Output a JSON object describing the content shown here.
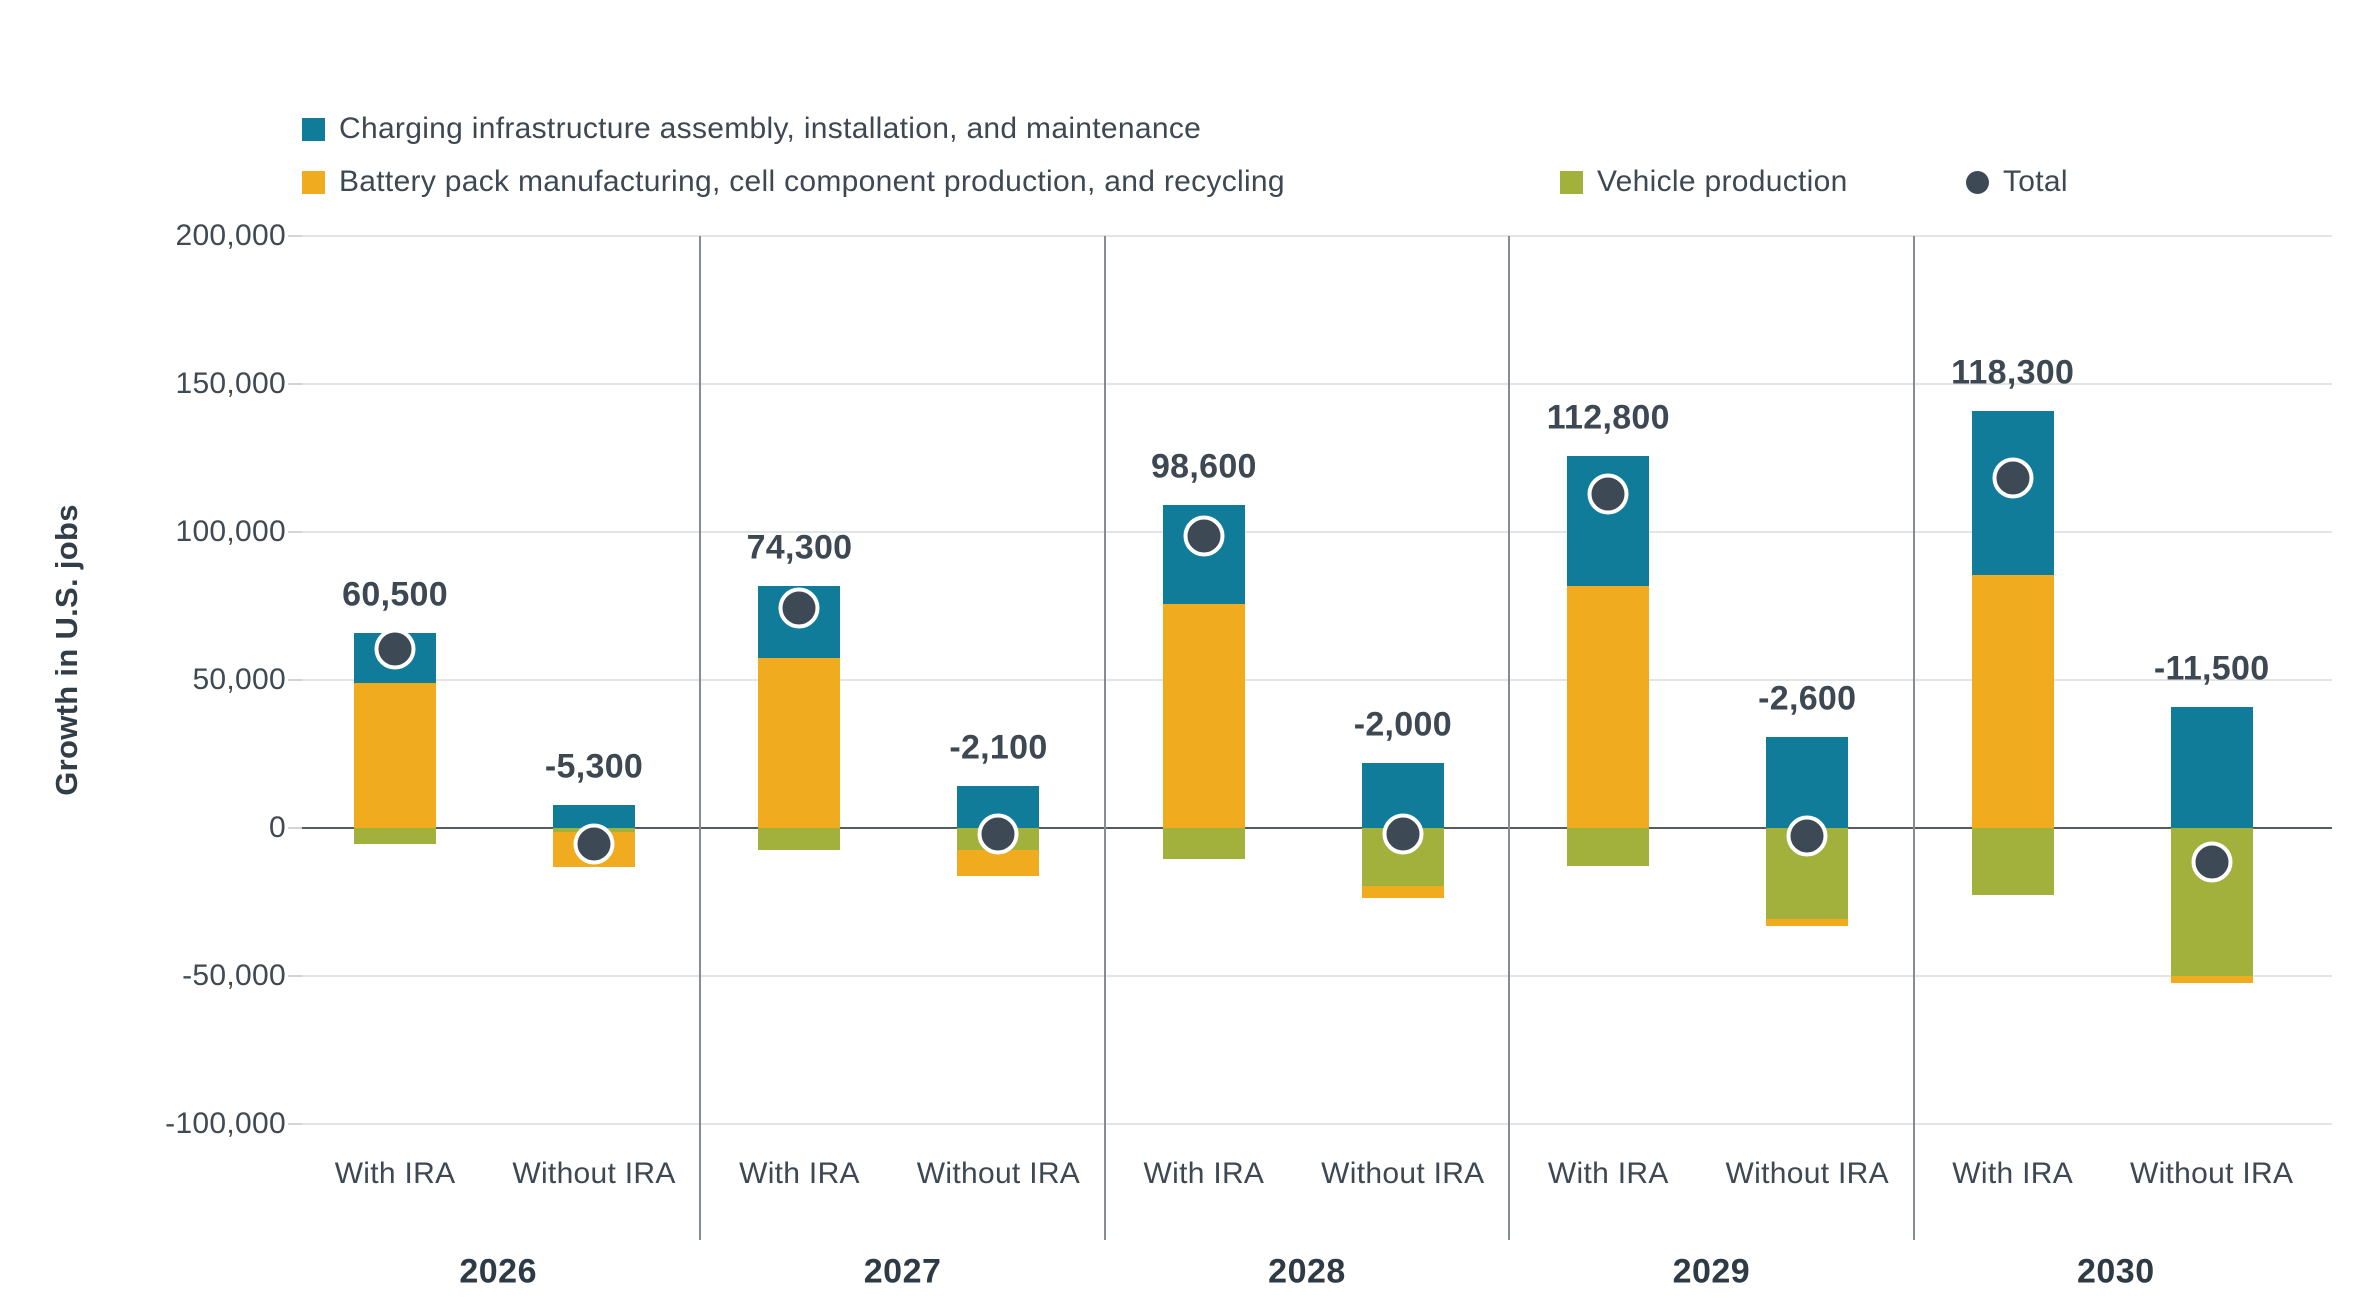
{
  "chart_data": {
    "type": "bar",
    "stacked": true,
    "ylabel": "Growth in U.S. jobs",
    "ylim": [
      -100000,
      200000
    ],
    "grid": true,
    "legend_position": "top",
    "yticks": [
      {
        "value": 200000,
        "label": "200,000"
      },
      {
        "value": 150000,
        "label": "150,000"
      },
      {
        "value": 100000,
        "label": "100,000"
      },
      {
        "value": 50000,
        "label": "50,000"
      },
      {
        "value": 0,
        "label": "0"
      },
      {
        "value": -50000,
        "label": "-50,000"
      },
      {
        "value": -100000,
        "label": "-100,000"
      }
    ],
    "legend": {
      "charging": "Charging infrastructure assembly, installation, and maintenance",
      "battery": "Battery pack manufacturing, cell component production, and recycling",
      "vehicle": "Vehicle production",
      "total": "Total"
    },
    "colors": {
      "charging": "#107c99",
      "battery": "#f0ab1e",
      "vehicle": "#a2b13c",
      "total_dot": "#3d4a55",
      "gridline": "#e3e4e5",
      "zero_line": "#575c60",
      "separator": "#858d92",
      "text": "#3d4852"
    },
    "stack_order": {
      "positive": [
        "battery",
        "charging"
      ],
      "negative": [
        "vehicle",
        "battery"
      ]
    },
    "bar_labels": [
      "With IRA",
      "Without IRA"
    ],
    "groups": [
      {
        "year": "2026",
        "bars": [
          {
            "label": "With IRA",
            "total": 60500,
            "total_label": "60,500",
            "segments": {
              "charging": 16800,
              "battery": 49000,
              "vehicle": -5300
            }
          },
          {
            "label": "Without IRA",
            "total": -5300,
            "total_label": "-5,300",
            "segments": {
              "charging": 7800,
              "battery": -11600,
              "vehicle": -1500
            }
          }
        ]
      },
      {
        "year": "2027",
        "bars": [
          {
            "label": "With IRA",
            "total": 74300,
            "total_label": "74,300",
            "segments": {
              "charging": 24500,
              "battery": 57400,
              "vehicle": -7600
            }
          },
          {
            "label": "Without IRA",
            "total": -2100,
            "total_label": "-2,100",
            "segments": {
              "charging": 14200,
              "battery": -8800,
              "vehicle": -7500
            }
          }
        ]
      },
      {
        "year": "2028",
        "bars": [
          {
            "label": "With IRA",
            "total": 98600,
            "total_label": "98,600",
            "segments": {
              "charging": 33200,
              "battery": 75800,
              "vehicle": -10400
            }
          },
          {
            "label": "Without IRA",
            "total": -2000,
            "total_label": "-2,000",
            "segments": {
              "charging": 21800,
              "battery": -4200,
              "vehicle": -19600
            }
          }
        ]
      },
      {
        "year": "2029",
        "bars": [
          {
            "label": "With IRA",
            "total": 112800,
            "total_label": "112,800",
            "segments": {
              "charging": 44000,
              "battery": 81700,
              "vehicle": -12900
            }
          },
          {
            "label": "Without IRA",
            "total": -2600,
            "total_label": "-2,600",
            "segments": {
              "charging": 30600,
              "battery": -2500,
              "vehicle": -30700
            }
          }
        ]
      },
      {
        "year": "2030",
        "bars": [
          {
            "label": "With IRA",
            "total": 118300,
            "total_label": "118,300",
            "segments": {
              "charging": 55500,
              "battery": 85500,
              "vehicle": -22700
            }
          },
          {
            "label": "Without IRA",
            "total": -11500,
            "total_label": "-11,500",
            "segments": {
              "charging": 41000,
              "battery": -2500,
              "vehicle": -50000
            }
          }
        ]
      }
    ]
  }
}
